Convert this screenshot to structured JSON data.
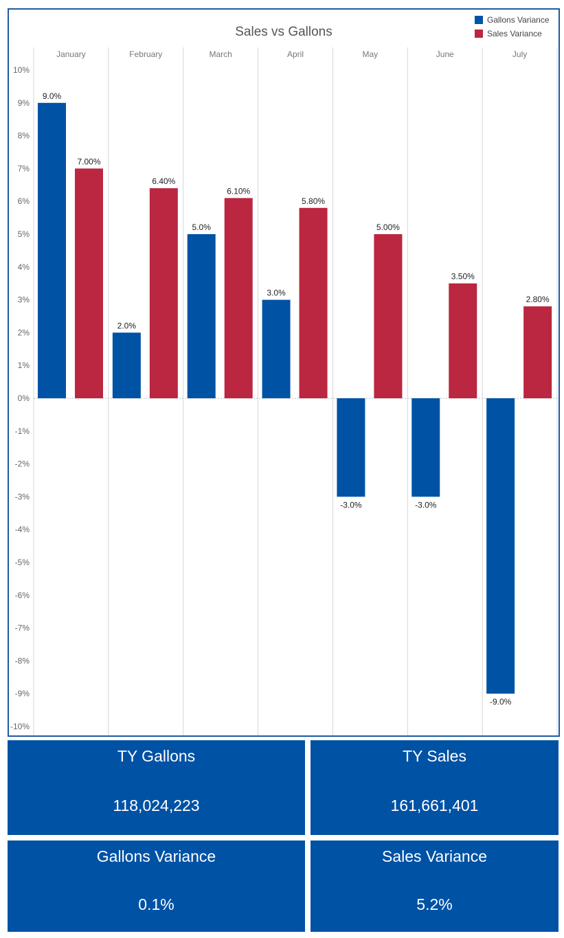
{
  "colors": {
    "gallons": "#0052a5",
    "sales": "#bb2640",
    "frame": "#1e5aa0",
    "kpi_bg": "#0052a5"
  },
  "chart_data": {
    "type": "bar",
    "title": "Sales vs Gallons",
    "categories": [
      "January",
      "February",
      "March",
      "April",
      "May",
      "June",
      "July"
    ],
    "series": [
      {
        "name": "Gallons Variance",
        "values": [
          9.0,
          2.0,
          5.0,
          3.0,
          -3.0,
          -3.0,
          -9.0
        ],
        "labels": [
          "9.0%",
          "2.0%",
          "5.0%",
          "3.0%",
          "-3.0%",
          "-3.0%",
          "-9.0%"
        ]
      },
      {
        "name": "Sales Variance",
        "values": [
          7.0,
          6.4,
          6.1,
          5.8,
          5.0,
          3.5,
          2.8
        ],
        "labels": [
          "7.00%",
          "6.40%",
          "6.10%",
          "5.80%",
          "5.00%",
          "3.50%",
          "2.80%"
        ]
      }
    ],
    "ylim": [
      -10,
      10
    ],
    "yticks": [
      "10%",
      "9%",
      "8%",
      "7%",
      "6%",
      "5%",
      "4%",
      "3%",
      "2%",
      "1%",
      "0%",
      "-1%",
      "-2%",
      "-3%",
      "-4%",
      "-5%",
      "-6%",
      "-7%",
      "-8%",
      "-9%",
      "-10%"
    ],
    "legend_position": "top-right"
  },
  "kpis": {
    "ty_gallons": {
      "title": "TY Gallons",
      "value": "118,024,223"
    },
    "ty_sales": {
      "title": "TY Sales",
      "value": "161,661,401"
    },
    "gallons_variance": {
      "title": "Gallons Variance",
      "value": "0.1%"
    },
    "sales_variance": {
      "title": "Sales Variance",
      "value": "5.2%"
    }
  }
}
